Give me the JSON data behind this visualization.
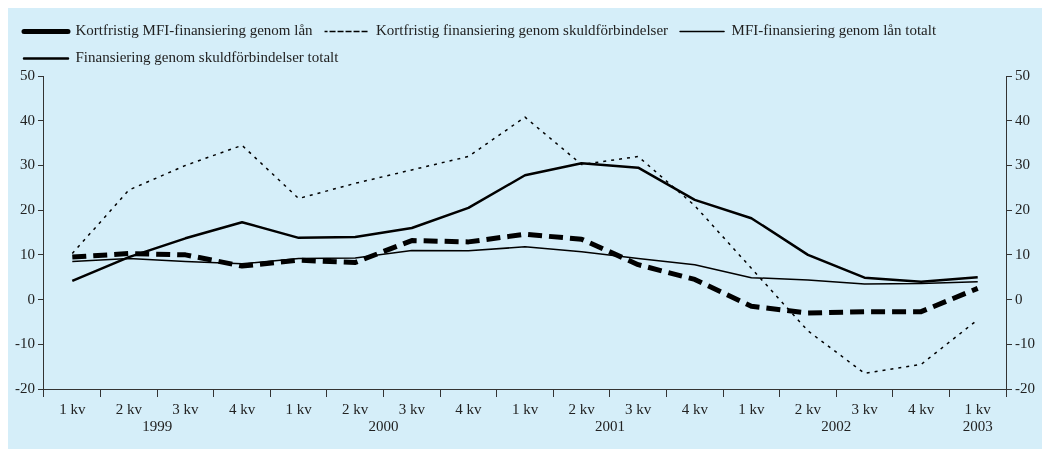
{
  "chart_data": {
    "type": "line",
    "categories": [
      "1 kv",
      "2 kv",
      "3 kv",
      "4 kv",
      "1 kv",
      "2 kv",
      "3 kv",
      "4 kv",
      "1 kv",
      "2 kv",
      "3 kv",
      "4 kv",
      "1 kv",
      "2 kv",
      "3 kv",
      "4 kv",
      "1 kv"
    ],
    "series": [
      {
        "name": "Kortfristig MFI-finansiering genom lån",
        "color": "#000000",
        "line_style": "dashed",
        "values": [
          9.5,
          10.3,
          10,
          7.5,
          8.8,
          8.3,
          13.2,
          12.9,
          14.6,
          13.5,
          7.8,
          4.5,
          -1.5,
          -3,
          -2.7,
          -2.7,
          2.5
        ]
      },
      {
        "name": "Kortfristig finansiering genom skuldförbindelser",
        "color": "#000000",
        "line_style": "dotted",
        "values": [
          10.3,
          24.5,
          30,
          34.5,
          22.6,
          26,
          29,
          32,
          40.8,
          30.2,
          32,
          21,
          7,
          -7,
          -16.5,
          -14.5,
          -4.5
        ]
      },
      {
        "name": "MFI-finansiering genom lån totalt",
        "color": "#000000",
        "line_style": "solid",
        "values": [
          8.5,
          9.2,
          8.5,
          8,
          9.2,
          9.3,
          11,
          10.9,
          11.8,
          10.7,
          9.2,
          7.8,
          4.9,
          4.4,
          3.5,
          3.6,
          4
        ]
      },
      {
        "name": "Finansiering genom skuldförbindelser totalt",
        "color": "#000000",
        "line_style": "solid",
        "values": [
          4.2,
          9.5,
          13.7,
          17.3,
          13.8,
          14,
          16,
          20.5,
          27.8,
          30.5,
          29.5,
          22.3,
          18.2,
          10,
          4.9,
          4,
          5
        ]
      }
    ],
    "ylim": [
      -20,
      50
    ],
    "yticks": [
      -20,
      -10,
      0,
      10,
      20,
      30,
      40,
      50
    ],
    "y2lim": [
      -20,
      50
    ],
    "y2ticks": [
      -20,
      -10,
      0,
      10,
      20,
      30,
      40,
      50
    ],
    "annotations": [
      "1999",
      "2000",
      "2001",
      "2002",
      "2003"
    ],
    "grid": false,
    "legend": "top",
    "marker": "none"
  }
}
